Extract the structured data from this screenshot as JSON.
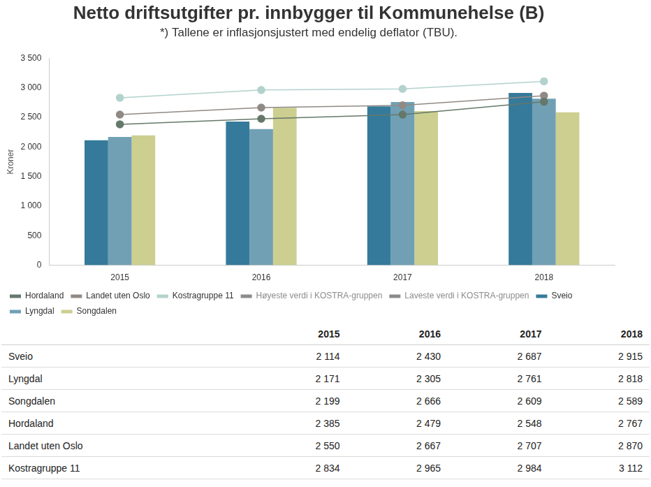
{
  "chart_data": {
    "type": "bar",
    "title": "Netto driftsutgifter pr. innbygger til Kommunehelse (B)",
    "subtitle": "*) Tallene er inflasjonsjustert med endelig deflator (TBU).",
    "y_label": "Kroner",
    "categories": [
      "2015",
      "2016",
      "2017",
      "2018"
    ],
    "series": [
      {
        "name": "Sveio",
        "type": "bar",
        "color": "#357a9a",
        "values": [
          2114,
          2430,
          2687,
          2915
        ]
      },
      {
        "name": "Lyngdal",
        "type": "bar",
        "color": "#71a0b5",
        "values": [
          2171,
          2305,
          2761,
          2818
        ]
      },
      {
        "name": "Songdalen",
        "type": "bar",
        "color": "#cccf8f",
        "values": [
          2199,
          2666,
          2609,
          2589
        ]
      },
      {
        "name": "Hordaland",
        "type": "line",
        "color": "#65786a",
        "marker": "circle",
        "values": [
          2385,
          2479,
          2548,
          2767
        ]
      },
      {
        "name": "Landet uten Oslo",
        "type": "line",
        "color": "#908a85",
        "marker": "circle",
        "values": [
          2550,
          2667,
          2707,
          2870
        ]
      },
      {
        "name": "Kostragruppe 11",
        "type": "line",
        "color": "#b3d2cd",
        "marker": "circle",
        "values": [
          2834,
          2965,
          2984,
          3112
        ]
      },
      {
        "name": "Høyeste verdi i KOSTRA-gruppen",
        "type": "line",
        "color": "#8c8c8c",
        "marker": "circle",
        "values": [
          null,
          null,
          null,
          null
        ]
      },
      {
        "name": "Laveste verdi i KOSTRA-gruppen",
        "type": "line",
        "color": "#8c8c8c",
        "marker": "circle",
        "values": [
          null,
          null,
          null,
          null
        ]
      }
    ],
    "ylim": [
      0,
      3500
    ],
    "yticks": [
      0,
      500,
      {
        "value": 1000,
        "label": "1 000"
      },
      {
        "value": 1500,
        "label": "1 500"
      },
      {
        "value": 2000,
        "label": "2 000"
      },
      {
        "value": 2500,
        "label": "2 500"
      },
      {
        "value": 3000,
        "label": "3 000"
      },
      {
        "value": 3500,
        "label": "3 500"
      }
    ],
    "grid": false,
    "legend": "bottom"
  },
  "table": {
    "columns": [
      "2015",
      "2016",
      "2017",
      "2018"
    ],
    "rows": [
      {
        "label": "Sveio",
        "cells": [
          "2 114",
          "2 430",
          "2 687",
          "2 915"
        ]
      },
      {
        "label": "Lyngdal",
        "cells": [
          "2 171",
          "2 305",
          "2 761",
          "2 818"
        ]
      },
      {
        "label": "Songdalen",
        "cells": [
          "2 199",
          "2 666",
          "2 609",
          "2 589"
        ]
      },
      {
        "label": "Hordaland",
        "cells": [
          "2 385",
          "2 479",
          "2 548",
          "2 767"
        ]
      },
      {
        "label": "Landet uten Oslo",
        "cells": [
          "2 550",
          "2 667",
          "2 707",
          "2 870"
        ]
      },
      {
        "label": "Kostragruppe 11",
        "cells": [
          "2 834",
          "2 965",
          "2 984",
          "3 112"
        ]
      }
    ]
  }
}
